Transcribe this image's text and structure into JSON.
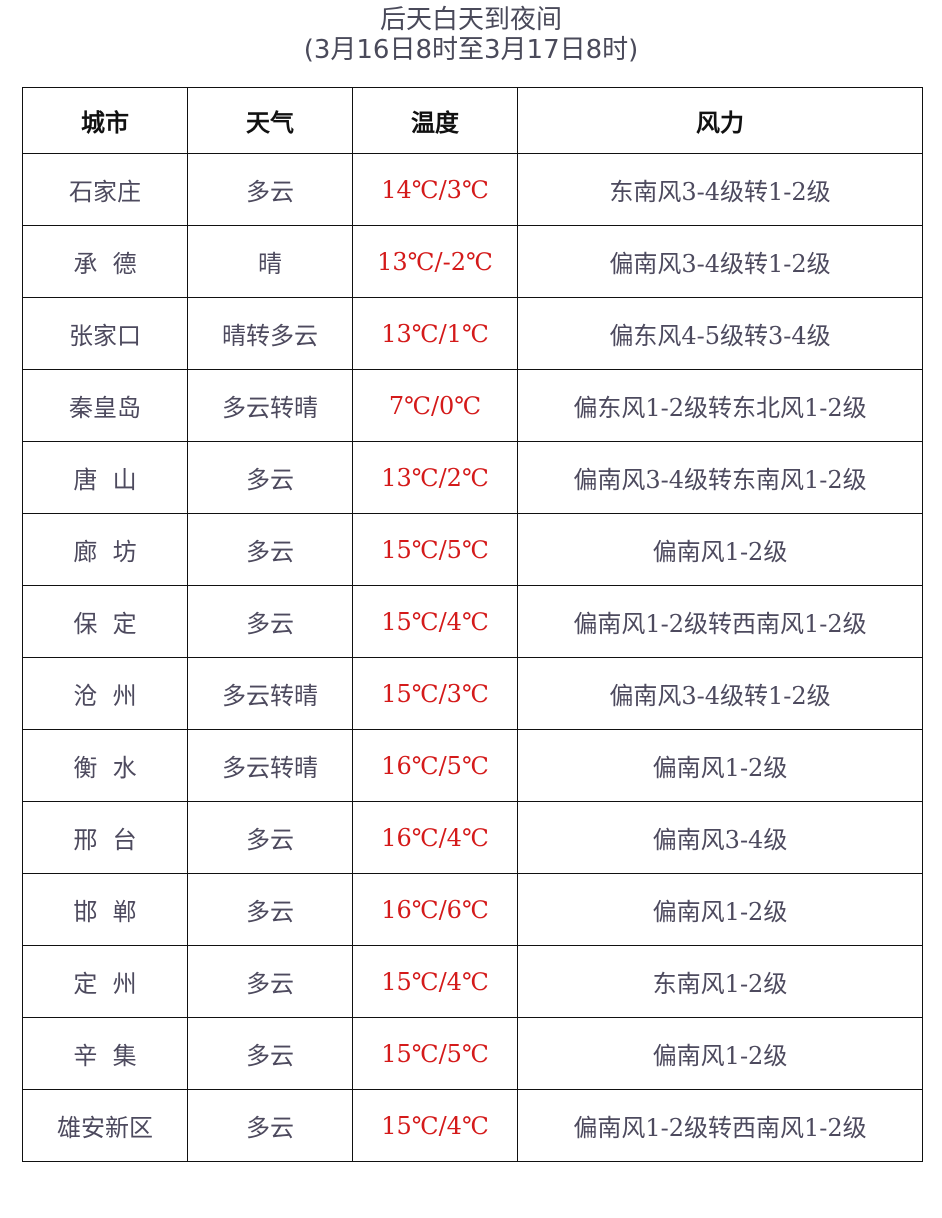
{
  "title": "后天白天到夜间",
  "subtitle": "(3月16日8时至3月17日8时)",
  "colors": {
    "temperature": "#d41a1a",
    "text": "#4d4a5e",
    "border": "#111111"
  },
  "table": {
    "headers": [
      "城市",
      "天气",
      "温度",
      "风力"
    ],
    "rows": [
      {
        "city": "石家庄",
        "weather": "多云",
        "temp": "14℃/3℃",
        "wind": "东南风3-4级转1-2级"
      },
      {
        "city": "承  德",
        "weather": "晴",
        "temp": "13℃/-2℃",
        "wind": "偏南风3-4级转1-2级"
      },
      {
        "city": "张家口",
        "weather": "晴转多云",
        "temp": "13℃/1℃",
        "wind": "偏东风4-5级转3-4级"
      },
      {
        "city": "秦皇岛",
        "weather": "多云转晴",
        "temp": "7℃/0℃",
        "wind": "偏东风1-2级转东北风1-2级"
      },
      {
        "city": "唐  山",
        "weather": "多云",
        "temp": "13℃/2℃",
        "wind": "偏南风3-4级转东南风1-2级"
      },
      {
        "city": "廊  坊",
        "weather": "多云",
        "temp": "15℃/5℃",
        "wind": "偏南风1-2级"
      },
      {
        "city": "保  定",
        "weather": "多云",
        "temp": "15℃/4℃",
        "wind": "偏南风1-2级转西南风1-2级"
      },
      {
        "city": "沧  州",
        "weather": "多云转晴",
        "temp": "15℃/3℃",
        "wind": "偏南风3-4级转1-2级"
      },
      {
        "city": "衡  水",
        "weather": "多云转晴",
        "temp": "16℃/5℃",
        "wind": "偏南风1-2级"
      },
      {
        "city": "邢  台",
        "weather": "多云",
        "temp": "16℃/4℃",
        "wind": "偏南风3-4级"
      },
      {
        "city": "邯  郸",
        "weather": "多云",
        "temp": "16℃/6℃",
        "wind": "偏南风1-2级"
      },
      {
        "city": "定  州",
        "weather": "多云",
        "temp": "15℃/4℃",
        "wind": "东南风1-2级"
      },
      {
        "city": "辛  集",
        "weather": "多云",
        "temp": "15℃/5℃",
        "wind": "偏南风1-2级"
      },
      {
        "city": "雄安新区",
        "weather": "多云",
        "temp": "15℃/4℃",
        "wind": "偏南风1-2级转西南风1-2级"
      }
    ]
  }
}
